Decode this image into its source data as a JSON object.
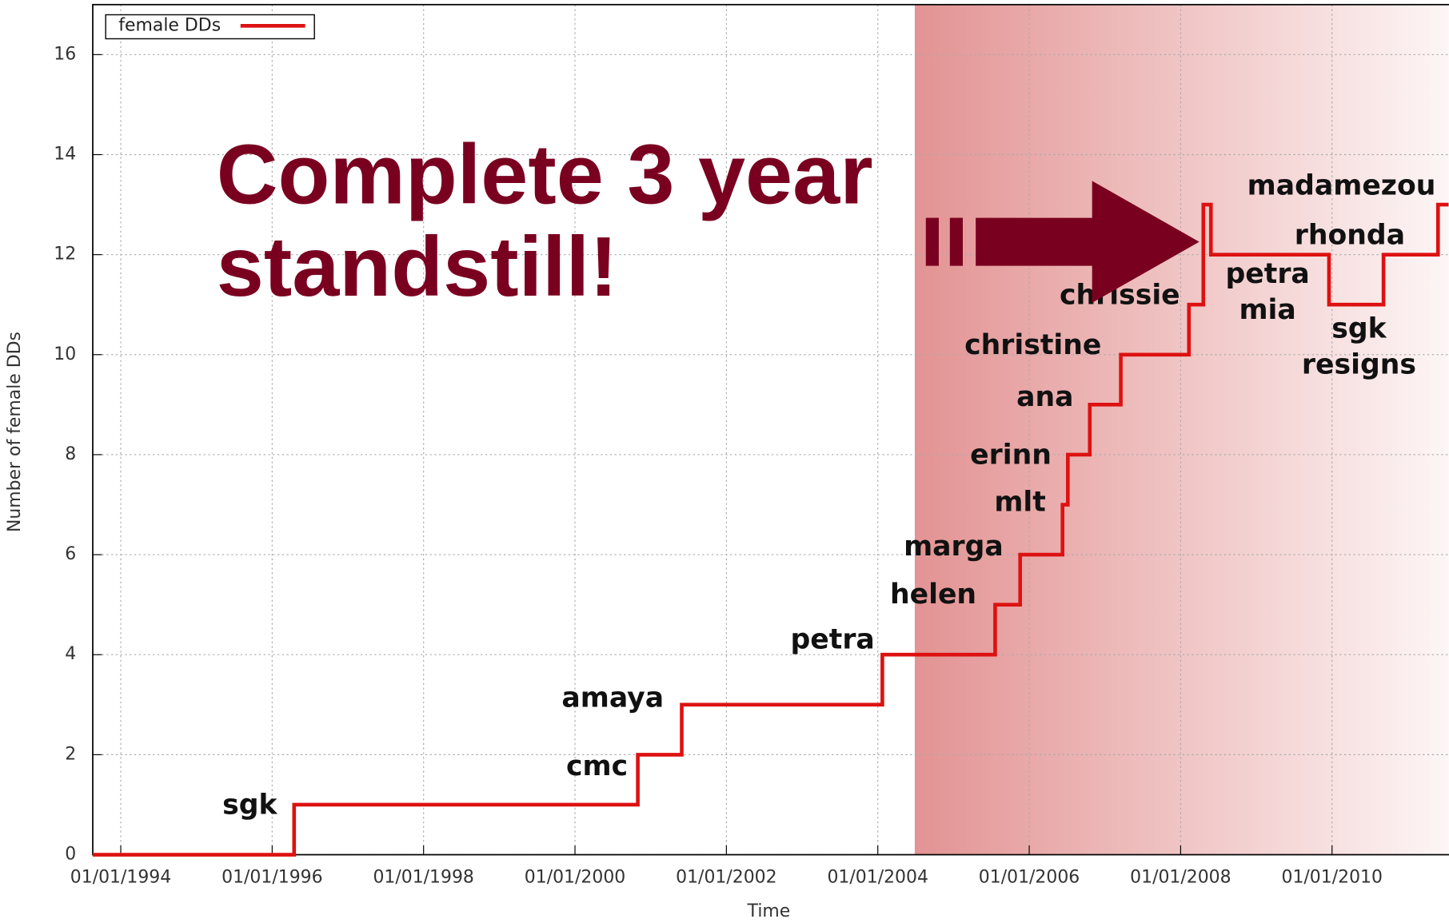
{
  "chart_data": {
    "type": "step",
    "xlabel": "Time",
    "ylabel": "Number of female DDs",
    "headline": [
      "Complete 3 year",
      "standstill!"
    ],
    "annotations": [
      "sgk",
      "cmc",
      "amaya",
      "petra",
      "helen",
      "marga",
      "mlt",
      "erinn",
      "ana",
      "christine",
      "chrissie",
      "madamezou",
      "rhonda",
      "petra",
      "mia",
      "sgk",
      "resigns"
    ],
    "series": [
      {
        "name": "female DDs",
        "color": "#dd1111",
        "x": [
          1993.63,
          1996.29,
          2000.83,
          2001.41,
          2004.06,
          2005.55,
          2005.88,
          2006.44,
          2006.51,
          2006.8,
          2007.21,
          2008.11,
          2008.3,
          2008.4,
          2009.96,
          2010.68,
          2011.4,
          2011.54
        ],
        "values": [
          0,
          1,
          2,
          3,
          4,
          5,
          6,
          7,
          8,
          9,
          10,
          11,
          13,
          12,
          11,
          12,
          13,
          13
        ]
      }
    ],
    "xlim": [
      1993.63,
      2011.54
    ],
    "ylim": [
      0,
      17
    ],
    "xticks": [
      {
        "value": 1994,
        "label": "01/01/1994"
      },
      {
        "value": 1996,
        "label": "01/01/1996"
      },
      {
        "value": 1998,
        "label": "01/01/1998"
      },
      {
        "value": 2000,
        "label": "01/01/2000"
      },
      {
        "value": 2002,
        "label": "01/01/2002"
      },
      {
        "value": 2004,
        "label": "01/01/2004"
      },
      {
        "value": 2006,
        "label": "01/01/2006"
      },
      {
        "value": 2008,
        "label": "01/01/2008"
      },
      {
        "value": 2010,
        "label": "01/01/2010"
      }
    ],
    "yticks": [
      0,
      2,
      4,
      6,
      8,
      10,
      12,
      14,
      16
    ],
    "grid": true,
    "legend": "upper left"
  }
}
